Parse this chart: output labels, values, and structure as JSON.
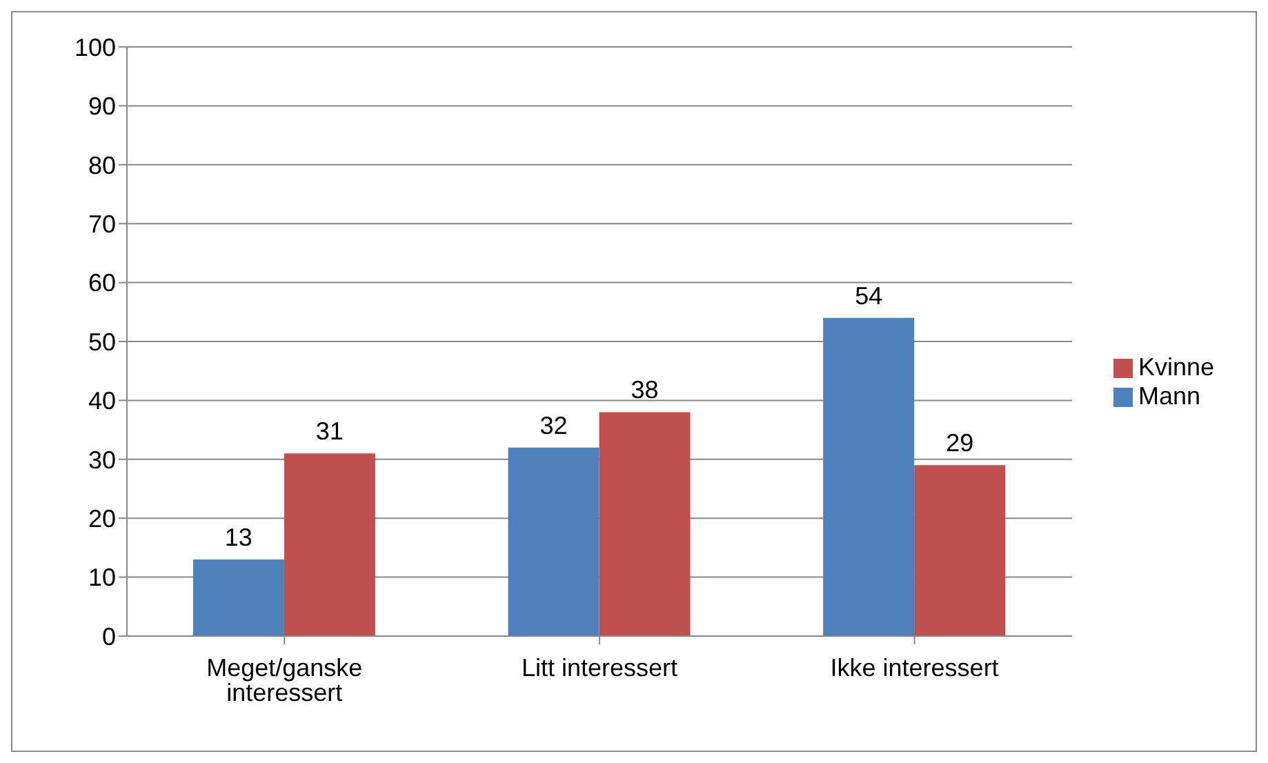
{
  "chart_data": {
    "type": "bar",
    "categories": [
      "Meget/ganske interessert",
      "Litt interessert",
      "Ikke interessert"
    ],
    "series": [
      {
        "name": "Mann",
        "color": "#4f81bd",
        "values": [
          13,
          32,
          54
        ]
      },
      {
        "name": "Kvinne",
        "color": "#c0504d",
        "values": [
          31,
          38,
          29
        ]
      }
    ],
    "ylim": [
      0,
      100
    ],
    "yticks": [
      0,
      10,
      20,
      30,
      40,
      50,
      60,
      70,
      80,
      90,
      100
    ],
    "grid": "y",
    "legend": "right",
    "data_labels": true
  }
}
